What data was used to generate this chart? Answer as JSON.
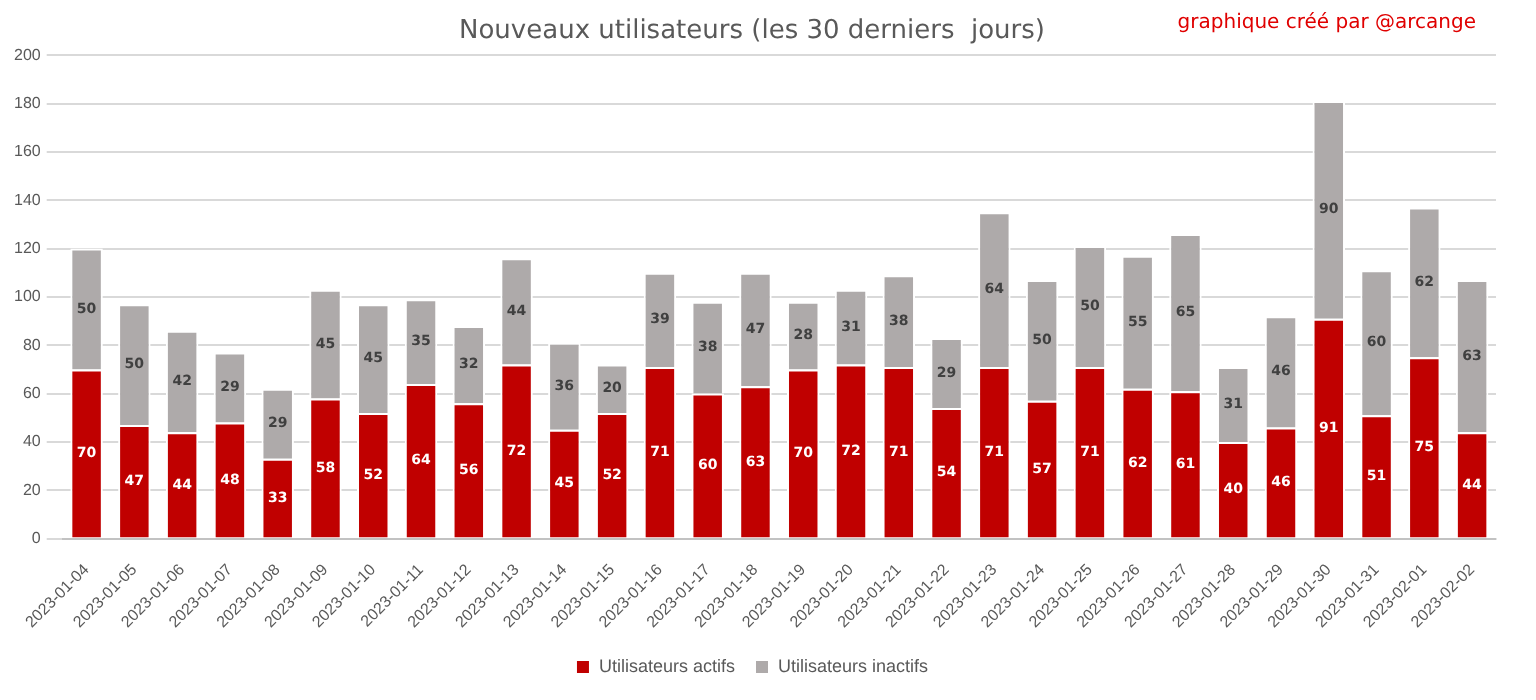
{
  "chart_data": {
    "type": "bar",
    "title": "Nouveaux utilisateurs (les 30 derniers  jours)",
    "annotations": [
      "graphique créé par @arcange"
    ],
    "categories": [
      "2023-01-04",
      "2023-01-05",
      "2023-01-06",
      "2023-01-07",
      "2023-01-08",
      "2023-01-09",
      "2023-01-10",
      "2023-01-11",
      "2023-01-12",
      "2023-01-13",
      "2023-01-14",
      "2023-01-15",
      "2023-01-16",
      "2023-01-17",
      "2023-01-18",
      "2023-01-19",
      "2023-01-20",
      "2023-01-21",
      "2023-01-22",
      "2023-01-23",
      "2023-01-24",
      "2023-01-25",
      "2023-01-26",
      "2023-01-27",
      "2023-01-28",
      "2023-01-29",
      "2023-01-30",
      "2023-01-31",
      "2023-02-01",
      "2023-02-02"
    ],
    "series": [
      {
        "name": "Utilisateurs actifs",
        "color": "#c00000",
        "values": [
          70,
          47,
          44,
          48,
          33,
          58,
          52,
          64,
          56,
          72,
          45,
          52,
          71,
          60,
          63,
          70,
          72,
          71,
          54,
          71,
          57,
          71,
          62,
          61,
          40,
          46,
          91,
          51,
          75,
          44
        ]
      },
      {
        "name": "Utilisateurs inactifs",
        "color": "#aeaaaa",
        "values": [
          50,
          50,
          42,
          29,
          29,
          45,
          45,
          35,
          32,
          44,
          36,
          20,
          39,
          38,
          47,
          28,
          31,
          38,
          29,
          64,
          50,
          50,
          55,
          65,
          31,
          46,
          90,
          60,
          62,
          63
        ]
      }
    ],
    "stacked": true,
    "data_labels": true,
    "ylim": [
      0,
      200
    ],
    "yticks": [
      0,
      20,
      40,
      60,
      80,
      100,
      120,
      140,
      160,
      180,
      200
    ],
    "grid": "y",
    "legend": "bottom"
  }
}
